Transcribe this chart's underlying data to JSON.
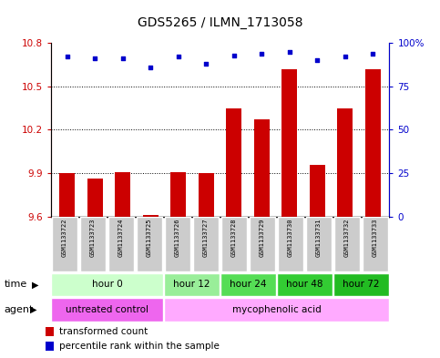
{
  "title": "GDS5265 / ILMN_1713058",
  "samples": [
    "GSM1133722",
    "GSM1133723",
    "GSM1133724",
    "GSM1133725",
    "GSM1133726",
    "GSM1133727",
    "GSM1133728",
    "GSM1133729",
    "GSM1133730",
    "GSM1133731",
    "GSM1133732",
    "GSM1133733"
  ],
  "transformed_counts": [
    9.9,
    9.86,
    9.91,
    9.61,
    9.91,
    9.9,
    10.35,
    10.27,
    10.62,
    9.96,
    10.35,
    10.62
  ],
  "percentile_ranks": [
    92,
    91,
    91,
    86,
    92,
    88,
    93,
    94,
    95,
    90,
    92,
    94
  ],
  "ylim_left": [
    9.6,
    10.8
  ],
  "ylim_right": [
    0,
    100
  ],
  "yticks_left": [
    9.6,
    9.9,
    10.2,
    10.5,
    10.8
  ],
  "yticks_right": [
    0,
    25,
    50,
    75,
    100
  ],
  "bar_color": "#cc0000",
  "dot_color": "#0000cc",
  "time_groups": [
    {
      "label": "hour 0",
      "start": 0,
      "end": 4,
      "color": "#ccffcc"
    },
    {
      "label": "hour 12",
      "start": 4,
      "end": 6,
      "color": "#99ee99"
    },
    {
      "label": "hour 24",
      "start": 6,
      "end": 8,
      "color": "#55dd55"
    },
    {
      "label": "hour 48",
      "start": 8,
      "end": 10,
      "color": "#33cc33"
    },
    {
      "label": "hour 72",
      "start": 10,
      "end": 12,
      "color": "#22bb22"
    }
  ],
  "agent_groups": [
    {
      "label": "untreated control",
      "start": 0,
      "end": 4,
      "color": "#ee66ee"
    },
    {
      "label": "mycophenolic acid",
      "start": 4,
      "end": 12,
      "color": "#ffaaff"
    }
  ],
  "legend_bar_label": "transformed count",
  "legend_dot_label": "percentile rank within the sample",
  "xlabel_time": "time",
  "xlabel_agent": "agent",
  "sample_box_color": "#cccccc",
  "dotted_lines": [
    9.9,
    10.2,
    10.5
  ],
  "bar_bottom": 9.6
}
